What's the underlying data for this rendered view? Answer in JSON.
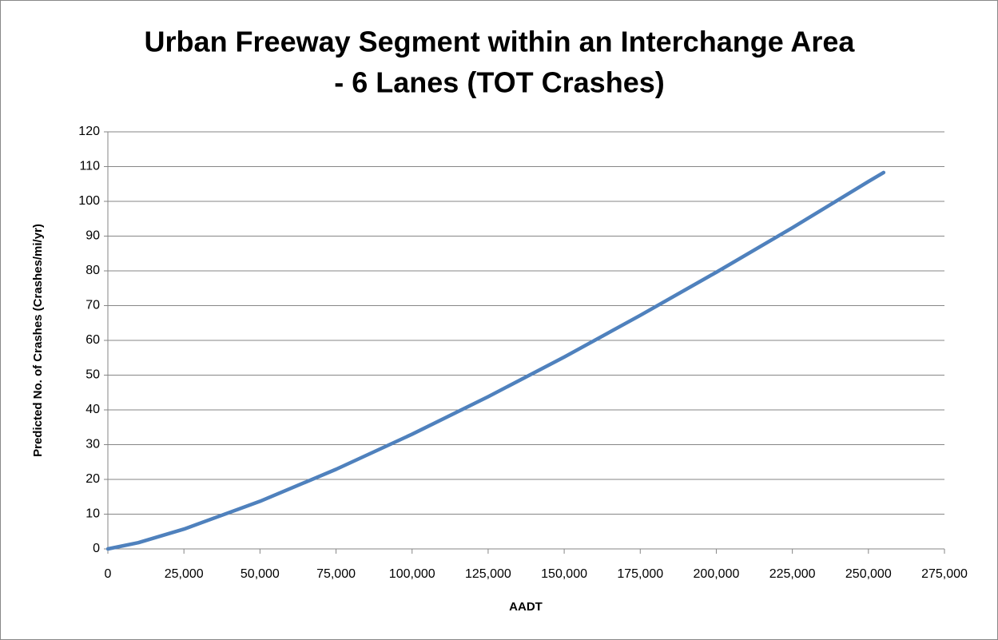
{
  "chart_data": {
    "type": "line",
    "title": [
      "Urban Freeway Segment within an Interchange Area",
      "- 6 Lanes (TOT Crashes)"
    ],
    "x_label": "AADT",
    "y_label": "Predicted No. of Crashes (Crashes/mi/yr)",
    "x": [
      0,
      10000,
      25000,
      50000,
      75000,
      100000,
      125000,
      150000,
      175000,
      200000,
      225000,
      250000,
      255000
    ],
    "values": [
      0,
      1.8,
      5.7,
      13.7,
      22.9,
      33,
      43.8,
      55.2,
      67.2,
      79.6,
      92.4,
      105.7,
      108.3
    ],
    "color": "#4f81bd",
    "xlim": [
      0,
      275000
    ],
    "xticks": [
      0,
      {
        "value": 25000,
        "label": "25,000"
      },
      {
        "value": 50000,
        "label": "50,000"
      },
      {
        "value": 75000,
        "label": "75,000"
      },
      {
        "value": 100000,
        "label": "100,000"
      },
      {
        "value": 125000,
        "label": "125,000"
      },
      {
        "value": 150000,
        "label": "150,000"
      },
      {
        "value": 175000,
        "label": "175,000"
      },
      {
        "value": 200000,
        "label": "200,000"
      },
      {
        "value": 225000,
        "label": "225,000"
      },
      {
        "value": 250000,
        "label": "250,000"
      },
      {
        "value": 275000,
        "label": "275,000"
      }
    ],
    "ylim": [
      0,
      120
    ],
    "yticks": [
      0,
      10,
      20,
      30,
      40,
      50,
      60,
      70,
      80,
      90,
      100,
      110,
      120
    ],
    "grid": true
  }
}
